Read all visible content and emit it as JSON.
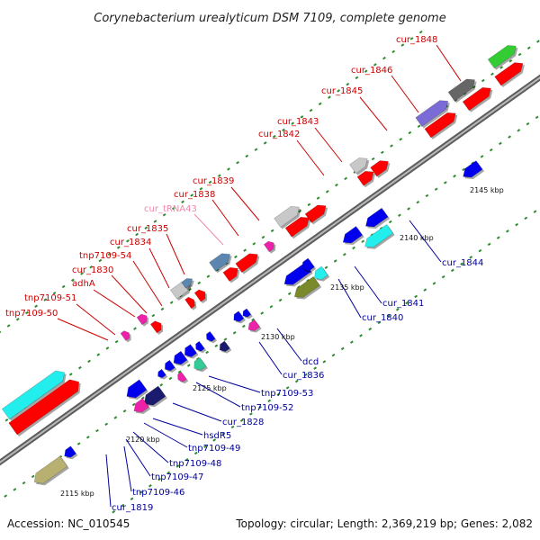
{
  "title": "Corynebacterium urealyticum DSM 7109, complete genome",
  "footer": {
    "accession": "Accession: NC_010545",
    "summary": "Topology: circular; Length: 2,369,219 bp; Genes: 2,082"
  },
  "colors": {
    "backbone": "#8a8a8a",
    "tick": "#2e8b2e",
    "label_forward": "#cc0000",
    "label_reverse": "#000099",
    "label_trna": "#ee88aa",
    "red": "#ff0000",
    "gray": "#c8c8c8",
    "darkgray": "#666666",
    "steel": "#5b86b0",
    "purple": "#7a6bd6",
    "green": "#33cc33",
    "blue": "#0000ee",
    "cyan": "#22eeee",
    "olive": "#7a8a2a",
    "magenta": "#ee22aa",
    "pink": "#ffaacc",
    "navy": "#1a1a6e",
    "teal": "#33cc99",
    "khaki": "#b8b070"
  },
  "scale_labels": [
    "2115 kbp",
    "2120 kbp",
    "2125 kbp",
    "2130 kbp",
    "2135 kbp",
    "2140 kbp",
    "2145 kbp"
  ],
  "forward_labels": [
    "cur_1848",
    "cur_1846",
    "cur_1845",
    "cur_1843",
    "cur_1842",
    "cur_1839",
    "cur_1838",
    "cur_tRNA43",
    "cur_1835",
    "cur_1834",
    "tnp7109-54",
    "cur_1830",
    "adhA",
    "tnp7109-51",
    "tnp7109-50"
  ],
  "reverse_labels": [
    "cur_1844",
    "cur_1841",
    "cur_1840",
    "dcd",
    "cur_1836",
    "tnp7109-53",
    "tnp7109-52",
    "cur_1828",
    "hsdR5",
    "tnp7109-49",
    "tnp7109-48",
    "tnp7109-47",
    "tnp7109-46",
    "cur_1819"
  ]
}
